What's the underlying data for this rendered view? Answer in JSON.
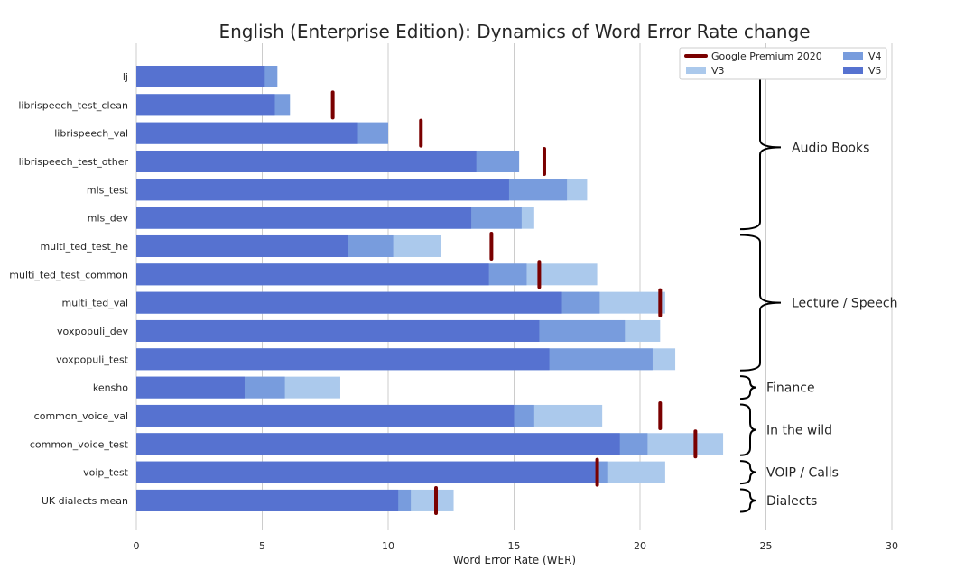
{
  "chart_data": {
    "type": "bar",
    "orientation": "horizontal",
    "title": "English (Enterprise Edition): Dynamics of Word Error Rate change",
    "xlabel": "Word Error Rate (WER)",
    "ylabel": "",
    "xlim": [
      0,
      30
    ],
    "xticks": [
      0,
      5,
      10,
      15,
      20,
      25,
      30
    ],
    "grid": "vertical",
    "legend_position": "top-right",
    "categories": [
      "lj",
      "librispeech_test_clean",
      "librispeech_val",
      "librispeech_test_other",
      "mls_test",
      "mls_dev",
      "multi_ted_test_he",
      "multi_ted_test_common",
      "multi_ted_val",
      "voxpopuli_dev",
      "voxpopuli_test",
      "kensho",
      "common_voice_val",
      "common_voice_test",
      "voip_test",
      "UK dialects mean"
    ],
    "series": [
      {
        "name": "V3",
        "color": "#abc9ec",
        "values": [
          5.6,
          6.1,
          10.0,
          15.2,
          17.9,
          15.8,
          12.1,
          18.3,
          21.0,
          20.8,
          21.4,
          8.1,
          18.5,
          23.3,
          21.0,
          12.6
        ]
      },
      {
        "name": "V4",
        "color": "#789cdd",
        "values": [
          5.6,
          6.1,
          10.0,
          15.2,
          17.1,
          15.3,
          10.2,
          15.5,
          18.4,
          19.4,
          20.5,
          5.9,
          15.8,
          20.3,
          18.7,
          10.9
        ]
      },
      {
        "name": "V5",
        "color": "#5672d0",
        "values": [
          5.1,
          5.5,
          8.8,
          13.5,
          14.8,
          13.3,
          8.4,
          14.0,
          16.9,
          16.0,
          16.4,
          4.3,
          15.0,
          19.2,
          18.3,
          10.4
        ]
      },
      {
        "name": "Google Premium 2020",
        "type": "marker",
        "color": "#7a0000",
        "values": [
          null,
          7.8,
          11.3,
          16.2,
          null,
          null,
          14.1,
          16.0,
          20.8,
          null,
          null,
          null,
          20.8,
          22.2,
          18.3,
          11.9
        ]
      }
    ],
    "legend": [
      {
        "label": "Google Premium 2020",
        "kind": "line",
        "color": "#7a0000"
      },
      {
        "label": "V3",
        "kind": "patch",
        "color": "#abc9ec"
      },
      {
        "label": "V4",
        "kind": "patch",
        "color": "#789cdd"
      },
      {
        "label": "V5",
        "kind": "patch",
        "color": "#5672d0"
      }
    ],
    "groups": [
      {
        "label": "Audio Books",
        "from": 0,
        "to": 5
      },
      {
        "label": "Lecture / Speech",
        "from": 6,
        "to": 10
      },
      {
        "label": "Finance",
        "from": 11,
        "to": 11
      },
      {
        "label": "In the wild",
        "from": 12,
        "to": 13
      },
      {
        "label": "VOIP / Calls",
        "from": 14,
        "to": 14
      },
      {
        "label": "Dialects",
        "from": 15,
        "to": 15
      }
    ]
  }
}
